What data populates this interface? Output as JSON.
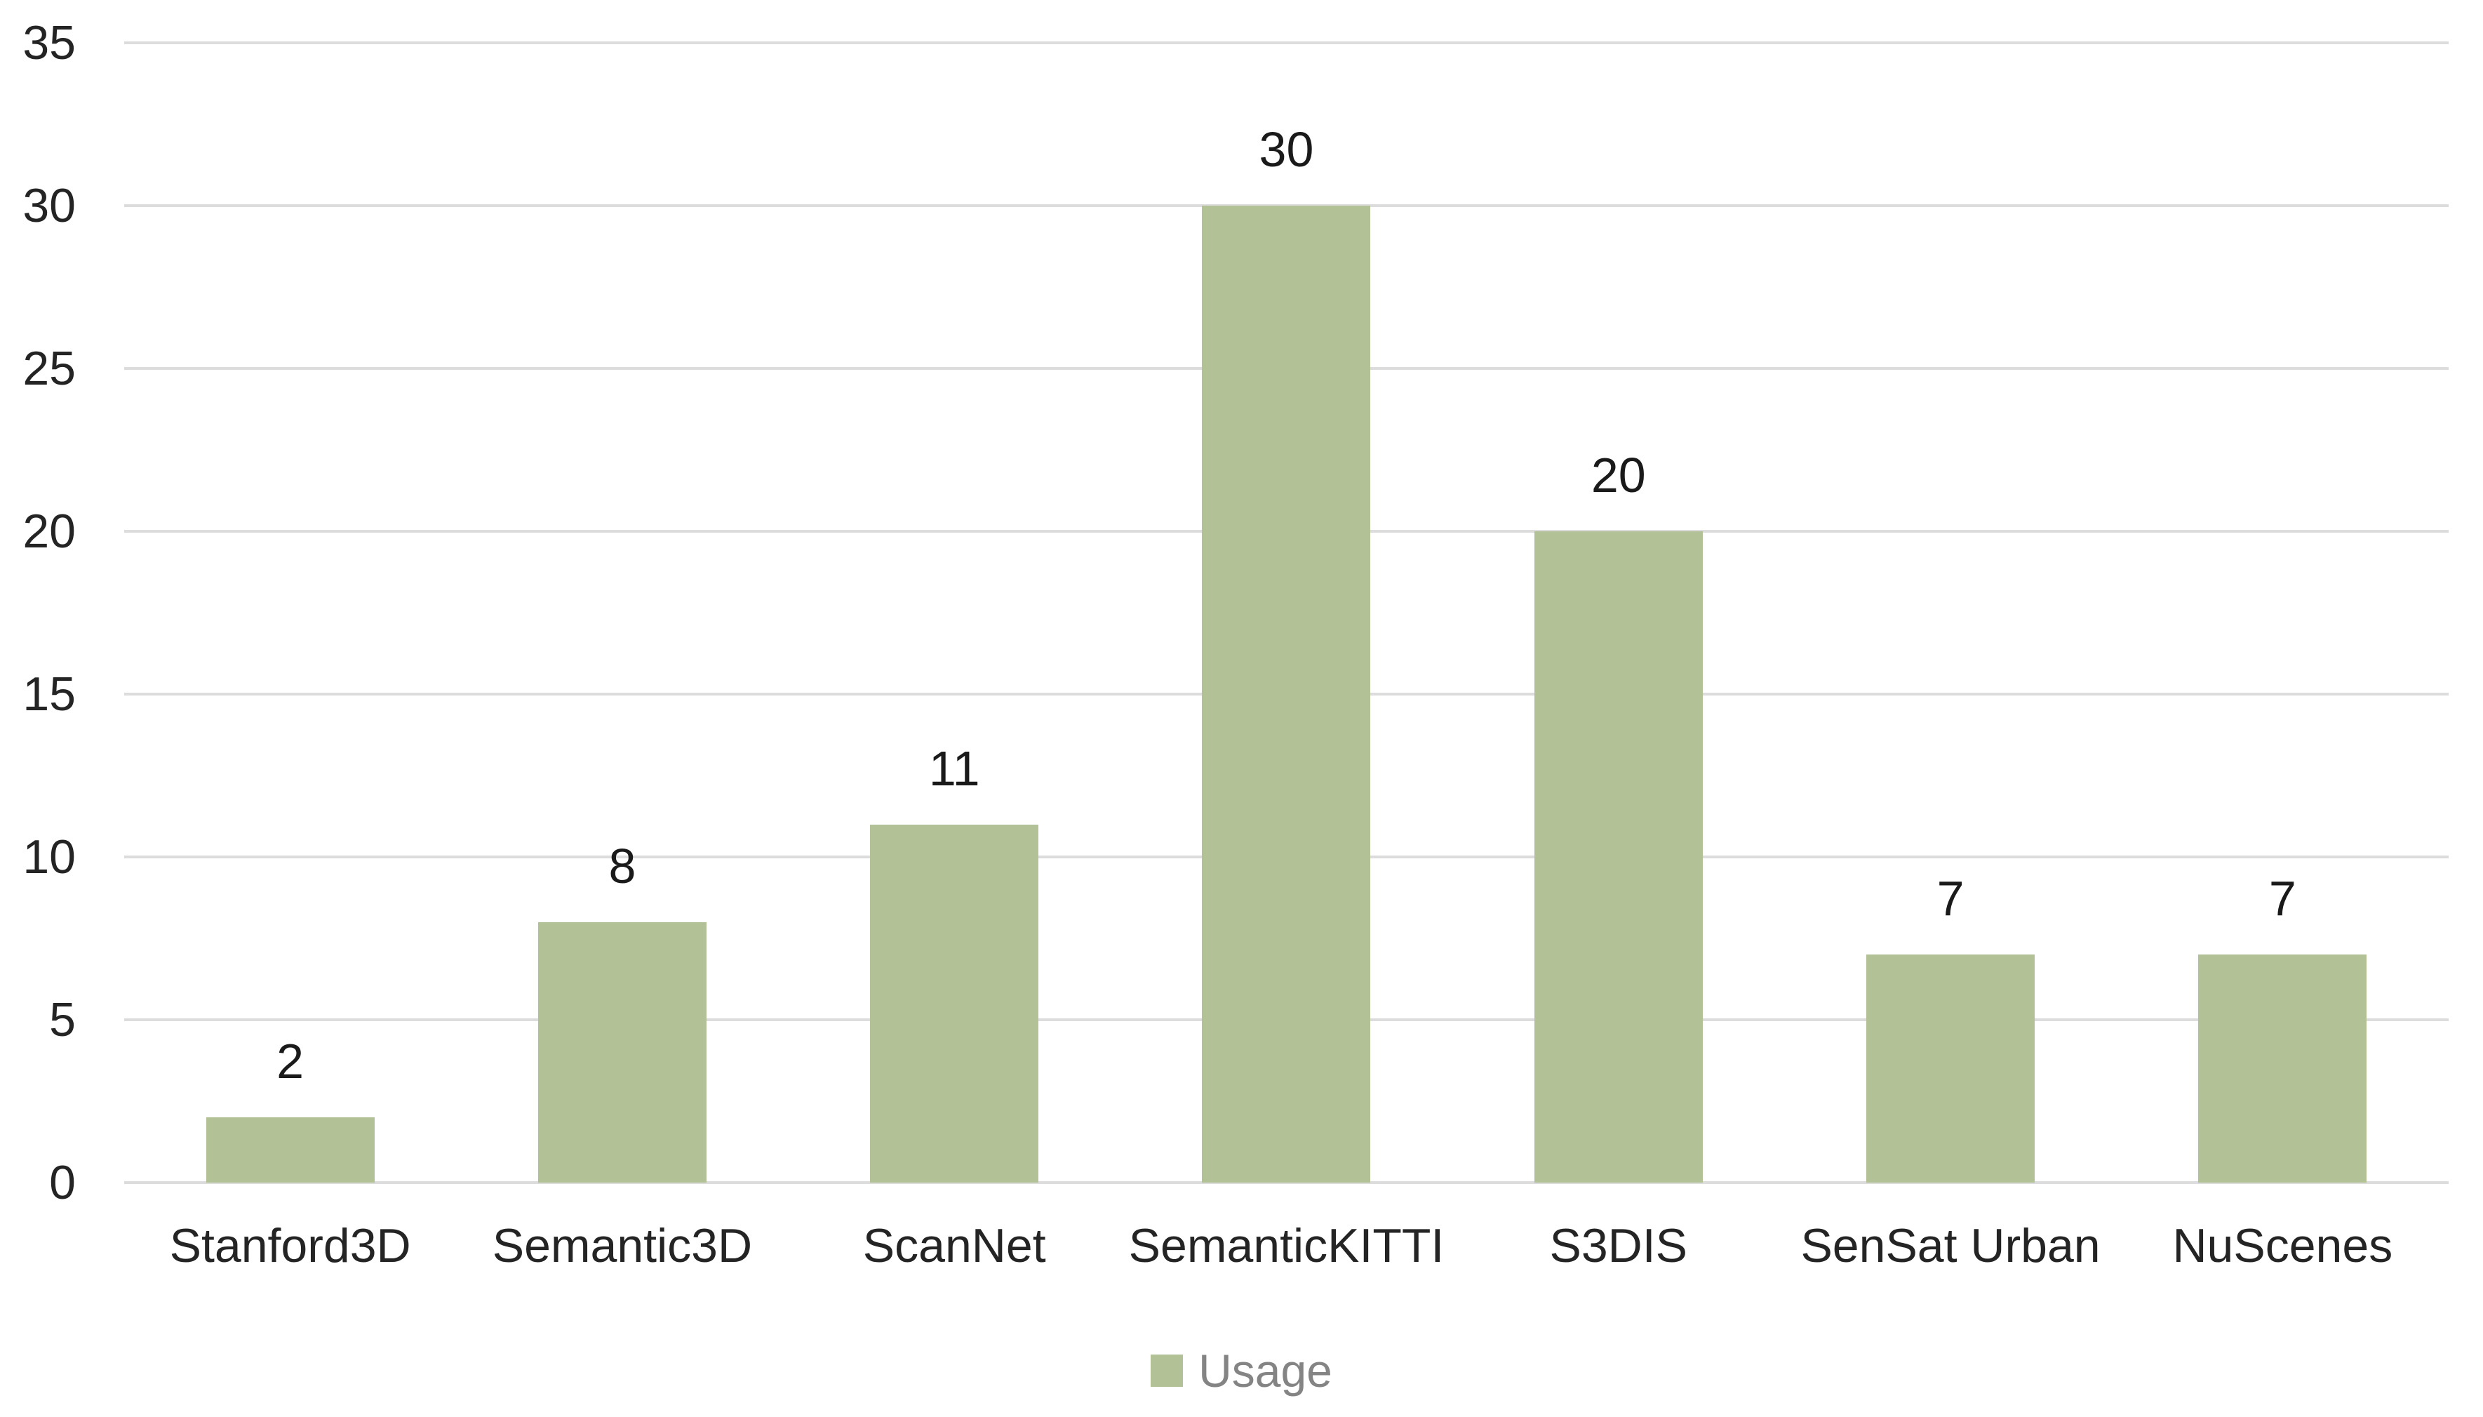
{
  "chart_data": {
    "type": "bar",
    "categories": [
      "Stanford3D",
      "Semantic3D",
      "ScanNet",
      "SemanticKITTI",
      "S3DIS",
      "SenSat Urban",
      "NuScenes"
    ],
    "series": [
      {
        "name": "Usage",
        "values": [
          2,
          8,
          11,
          30,
          20,
          7,
          7
        ]
      }
    ],
    "data_labels": [
      2,
      8,
      11,
      30,
      20,
      7,
      7
    ],
    "ylim": [
      0,
      35
    ],
    "yticks": [
      0,
      5,
      10,
      15,
      20,
      25,
      30,
      35
    ],
    "grid": "horizontal",
    "legend_position": "bottom-center",
    "colors": {
      "bar": "#b3c197",
      "gridline": "#dcdcdc",
      "tick_label": "#242424",
      "data_label": "#1a1a1a",
      "legend_text": "#848484",
      "background": "#ffffff"
    }
  },
  "legend": {
    "items": [
      {
        "label": "Usage",
        "swatch_color": "#b3c197"
      }
    ]
  }
}
